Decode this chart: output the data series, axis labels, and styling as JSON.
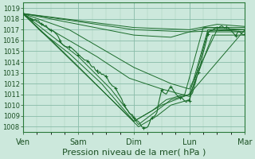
{
  "background_color": "#cce8dc",
  "plot_bg_color": "#cce8dc",
  "grid_major_color": "#88bba8",
  "grid_minor_color": "#aad0bf",
  "line_color": "#1a6b2a",
  "ylim": [
    1007.5,
    1019.5
  ],
  "yticks": [
    1008,
    1009,
    1010,
    1011,
    1012,
    1013,
    1014,
    1015,
    1016,
    1017,
    1018,
    1019
  ],
  "xtick_labels": [
    "Ven",
    "Sam",
    "Dim",
    "Lun",
    "Mar"
  ],
  "xtick_pos": [
    0,
    24,
    48,
    72,
    96
  ],
  "xlim": [
    0,
    96
  ],
  "xlabel": "Pression niveau de la mer( hPa )",
  "xlabel_fontsize": 8,
  "ytick_fontsize": 6,
  "xtick_fontsize": 7
}
